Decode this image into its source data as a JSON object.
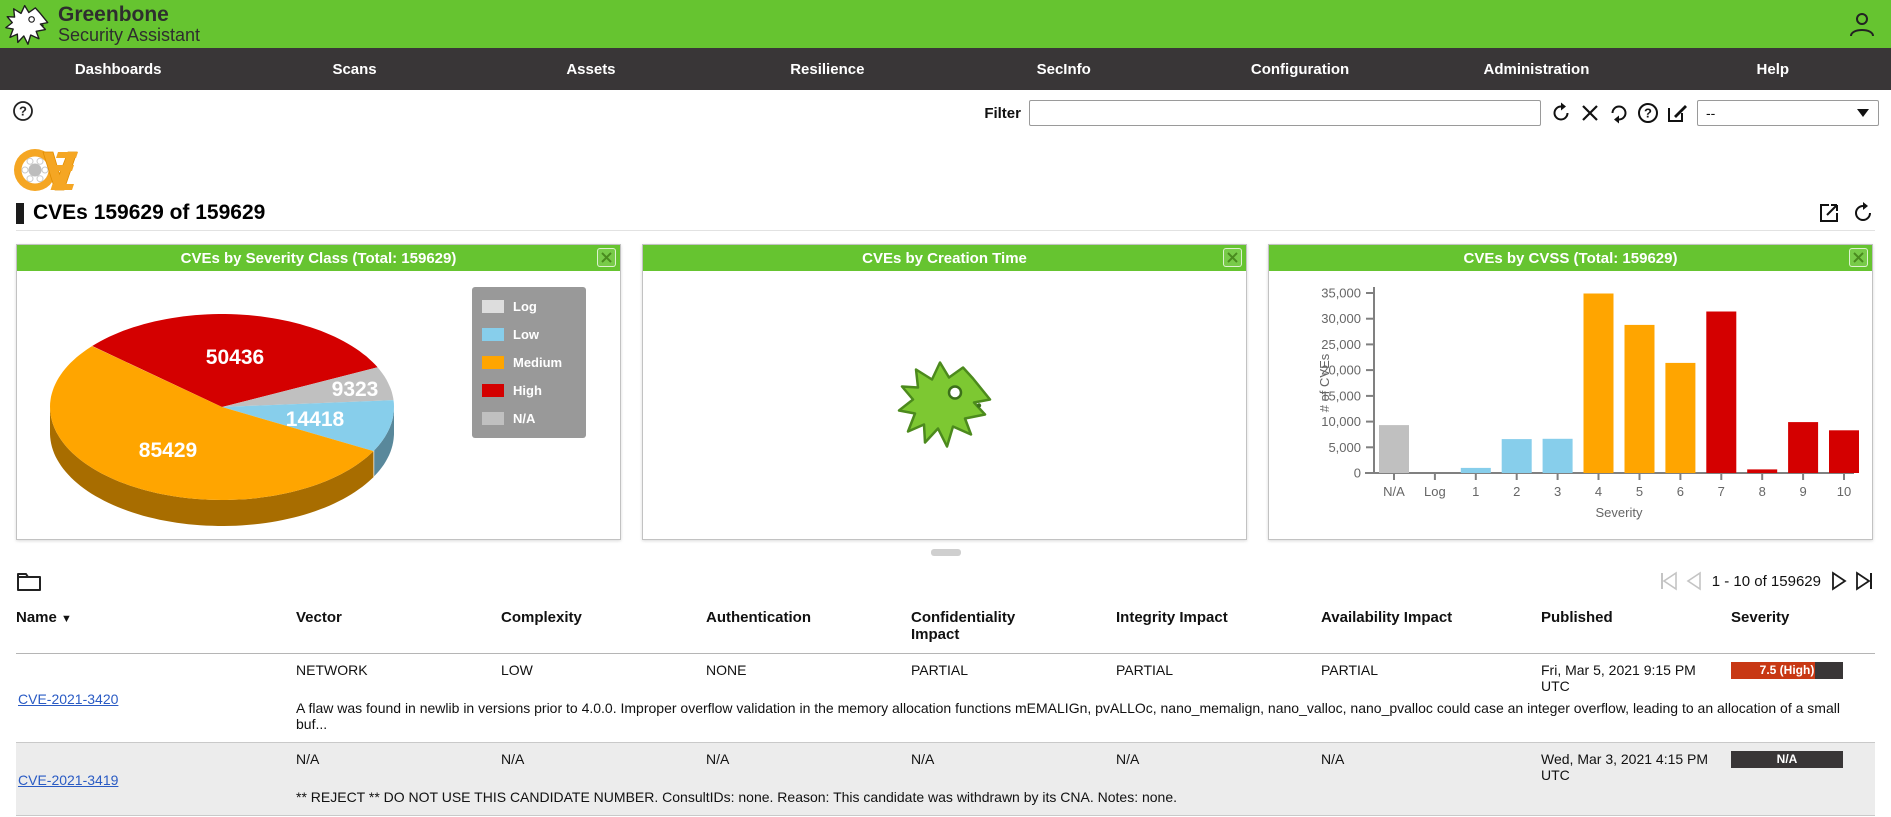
{
  "colors": {
    "brand_green": "#66c430",
    "nav_dark": "#393637",
    "link": "#2a5bc4",
    "severity_high_badge": "#c83814",
    "severity_na_badge": "#393637"
  },
  "topbar": {
    "brand_line1": "Greenbone",
    "brand_line2": "Security Assistant"
  },
  "nav": {
    "items": [
      "Dashboards",
      "Scans",
      "Assets",
      "Resilience",
      "SecInfo",
      "Configuration",
      "Administration",
      "Help"
    ]
  },
  "filter_bar": {
    "label": "Filter",
    "input_value": "",
    "dropdown_value": "--",
    "icons": [
      "update-filter-icon",
      "delete-filter-icon",
      "reset-filter-icon",
      "help-icon",
      "edit-filter-icon"
    ]
  },
  "page": {
    "title": "CVEs 159629 of 159629",
    "entity_icon": "cve-logo"
  },
  "dashboard": {
    "panels": [
      {
        "title": "CVEs by Severity Class (Total: 159629)"
      },
      {
        "title": "CVEs by Creation Time"
      },
      {
        "title": "CVEs by CVSS (Total: 159629)"
      }
    ],
    "legend": [
      {
        "label": "Log",
        "color": "#dddddd"
      },
      {
        "label": "Low",
        "color": "#87ceeb"
      },
      {
        "label": "Medium",
        "color": "#ffa500"
      },
      {
        "label": "High",
        "color": "#d40000"
      },
      {
        "label": "N/A",
        "color": "#c0c0c0"
      }
    ]
  },
  "chart_data": [
    {
      "type": "pie",
      "title": "CVEs by Severity Class (Total: 159629)",
      "total": 159629,
      "start_angle": 221,
      "legend_position": "right",
      "series": [
        {
          "name": "High",
          "value": 50436,
          "color": "#d40000"
        },
        {
          "name": "N/A",
          "value": 9323,
          "color": "#c0c0c0"
        },
        {
          "name": "Low",
          "value": 14418,
          "color": "#87ceeb"
        },
        {
          "name": "Medium",
          "value": 85429,
          "color": "#ffa500"
        },
        {
          "name": "Log",
          "value": 23,
          "color": "#dddddd"
        }
      ]
    },
    {
      "type": "bar",
      "title": "CVEs by CVSS (Total: 159629)",
      "categories": [
        "N/A",
        "Log",
        "1",
        "2",
        "3",
        "4",
        "5",
        "6",
        "7",
        "8",
        "9",
        "10"
      ],
      "values": [
        9323,
        23,
        1000,
        6600,
        6650,
        34900,
        28800,
        21400,
        31400,
        700,
        9900,
        8300
      ],
      "colors": [
        "#c0c0c0",
        "#dddddd",
        "#87ceeb",
        "#87ceeb",
        "#87ceeb",
        "#ffa500",
        "#ffa500",
        "#ffa500",
        "#d40000",
        "#d40000",
        "#d40000",
        "#d40000"
      ],
      "xlabel": "Severity",
      "ylabel": "# of CVEs",
      "ylim": [
        0,
        35000
      ],
      "ytick_step": 5000,
      "grid": false
    }
  ],
  "pagination": {
    "range_text": "1 - 10 of 159629"
  },
  "table": {
    "columns": [
      {
        "label": "Name",
        "sorted": "descending"
      },
      {
        "label": "Vector"
      },
      {
        "label": "Complexity"
      },
      {
        "label": "Authentication"
      },
      {
        "label": "Confidentiality Impact"
      },
      {
        "label": "Integrity Impact"
      },
      {
        "label": "Availability Impact"
      },
      {
        "label": "Published"
      },
      {
        "label": "Severity"
      }
    ],
    "rows": [
      {
        "name": "CVE-2021-3420",
        "vector": "NETWORK",
        "complexity": "LOW",
        "authentication": "NONE",
        "confidentiality_impact": "PARTIAL",
        "integrity_impact": "PARTIAL",
        "availability_impact": "PARTIAL",
        "published": "Fri, Mar 5, 2021 9:15 PM UTC",
        "severity": {
          "label": "7.5 (High)",
          "percent": 75,
          "color": "#c83814"
        },
        "description": "A flaw was found in newlib in versions prior to 4.0.0. Improper overflow validation in the memory allocation functions mEMALIGn, pvALLOc, nano_memalign, nano_valloc, nano_pvalloc could case an integer overflow, leading to an allocation of a small buf..."
      },
      {
        "name": "CVE-2021-3419",
        "vector": "N/A",
        "complexity": "N/A",
        "authentication": "N/A",
        "confidentiality_impact": "N/A",
        "integrity_impact": "N/A",
        "availability_impact": "N/A",
        "published": "Wed, Mar 3, 2021 4:15 PM UTC",
        "severity": {
          "label": "N/A",
          "percent": 0,
          "color": "#393637"
        },
        "description": "** REJECT ** DO NOT USE THIS CANDIDATE NUMBER. ConsultIDs: none. Reason: This candidate was withdrawn by its CNA. Notes: none."
      }
    ]
  }
}
